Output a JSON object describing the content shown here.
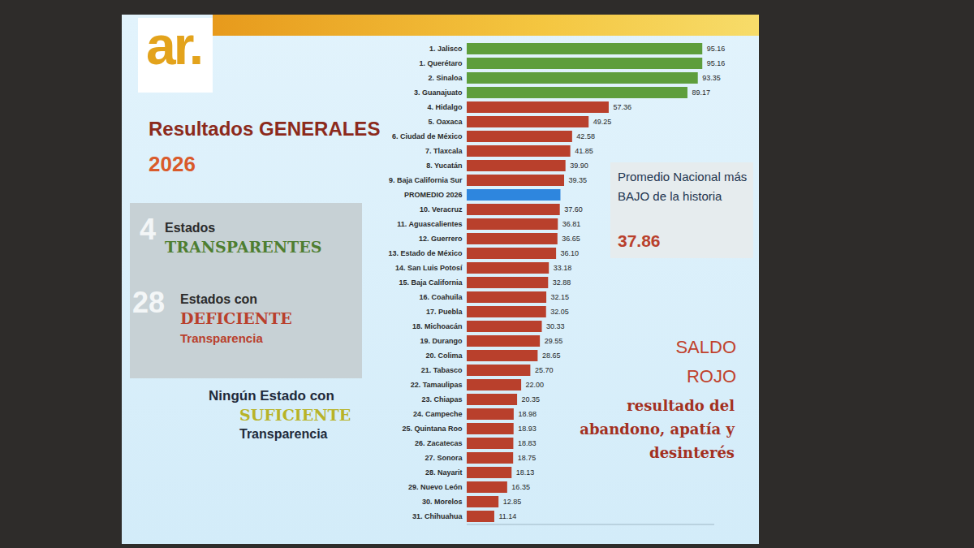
{
  "chart_data": {
    "type": "bar",
    "orientation": "horizontal",
    "title": "Resultados GENERALES",
    "subtitle": "2026",
    "categories": [
      "1. Jalisco",
      "1. Querétaro",
      "2. Sinaloa",
      "3. Guanajuato",
      "4. Hidalgo",
      "5. Oaxaca",
      "6. Ciudad de México",
      "7. Tlaxcala",
      "8. Yucatán",
      "9. Baja California Sur",
      "PROMEDIO 2026",
      "10. Veracruz",
      "11. Aguascalientes",
      "12. Guerrero",
      "13. Estado de México",
      "14. San Luis Potosí",
      "15. Baja California",
      "16. Coahuila",
      "17. Puebla",
      "18. Michoacán",
      "19. Durango",
      "20. Colima",
      "21. Tabasco",
      "22. Tamaulipas",
      "23. Chiapas",
      "24. Campeche",
      "25. Quintana Roo",
      "26. Zacatecas",
      "27. Sonora",
      "28. Nayarit",
      "29. Nuevo León",
      "30. Morelos",
      "31. Chihuahua"
    ],
    "values": [
      95.16,
      95.16,
      93.35,
      89.17,
      57.36,
      49.25,
      42.58,
      41.85,
      39.9,
      39.35,
      37.86,
      37.6,
      36.81,
      36.65,
      36.1,
      33.18,
      32.88,
      32.15,
      32.05,
      30.33,
      29.55,
      28.65,
      25.7,
      22,
      20.35,
      18.98,
      18.93,
      18.83,
      18.75,
      18.13,
      16.35,
      12.85,
      11.14
    ],
    "value_labels": [
      "95.16",
      "95.16",
      "93.35",
      "89.17",
      "57.36",
      "49.25",
      "42.58",
      "41.85",
      "39.90",
      "39.35",
      null,
      "37.60",
      "36.81",
      "36.65",
      "36.10",
      "33.18",
      "32.88",
      "32.15",
      "32.05",
      "30.33",
      "29.55",
      "28.65",
      "25.70",
      "22.00",
      "20.35",
      "18.98",
      "18.93",
      "18.83",
      "18.75",
      "18.13",
      "16.35",
      "12.85",
      "11.14"
    ],
    "colors": [
      "#5e9e3c",
      "#5e9e3c",
      "#5e9e3c",
      "#5e9e3c",
      "#b9402c",
      "#b9402c",
      "#b9402c",
      "#b9402c",
      "#b9402c",
      "#b9402c",
      "#2e86de",
      "#b9402c",
      "#b9402c",
      "#b9402c",
      "#b9402c",
      "#b9402c",
      "#b9402c",
      "#b9402c",
      "#b9402c",
      "#b9402c",
      "#b9402c",
      "#b9402c",
      "#b9402c",
      "#b9402c",
      "#b9402c",
      "#b9402c",
      "#b9402c",
      "#b9402c",
      "#b9402c",
      "#b9402c",
      "#b9402c",
      "#b9402c",
      "#b9402c"
    ],
    "xlim": [
      0,
      100
    ],
    "tick_labels": "y",
    "data_labels": true,
    "annotations": [
      "ar.",
      "4",
      "Estados",
      "TRANSPARENTES",
      "28",
      "Estados con",
      "DEFICIENTE",
      "Transparencia",
      "Ningún Estado con",
      "SUFICIENTE",
      "Transparencia",
      "Promedio Nacional más BAJO de la historia",
      "37.86",
      "SALDO ROJO",
      "resultado del abandono, apatía y desinterés"
    ]
  }
}
